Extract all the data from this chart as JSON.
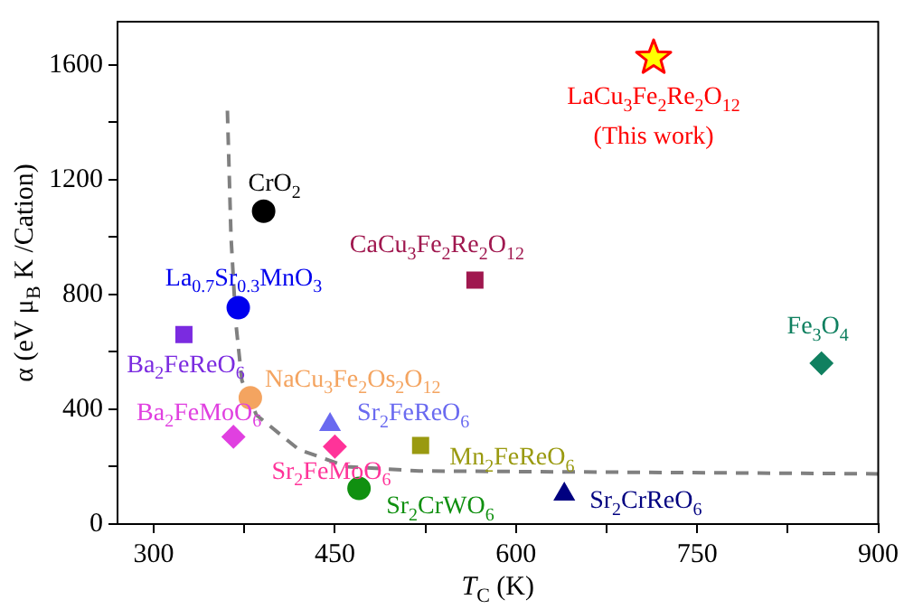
{
  "chart_data": {
    "type": "scatter",
    "xlabel": "T$_{C}$ (K)",
    "ylabel": "α (eV μ$_{B}$ K /Cation)",
    "xlim": [
      270,
      900
    ],
    "xticks": [
      300,
      {
        "value": 375,
        "label": null
      },
      450,
      {
        "value": 525,
        "label": null
      },
      600,
      {
        "value": 675,
        "label": null
      },
      750,
      {
        "value": 825,
        "label": null
      },
      900
    ],
    "ylim": [
      0,
      1750
    ],
    "yticks": [
      0,
      {
        "value": 200,
        "label": null
      },
      400,
      {
        "value": 600,
        "label": null
      },
      800,
      {
        "value": 1000,
        "label": null
      },
      1200,
      {
        "value": 1400,
        "label": null
      },
      1600
    ],
    "grid": false,
    "legend": false,
    "annotations": [
      {
        "text": "(This work)",
        "x": 714,
        "y": 1624
      }
    ],
    "series": [
      {
        "name": "LaCu$_{3}$Fe$_{2}$Re$_{2}$O$_{12}$",
        "color": "#ff0000",
        "marker": "star",
        "x": [
          714
        ],
        "values": [
          1624
        ]
      },
      {
        "name": "CrO$_{2}$",
        "color": "#000000",
        "marker": "circle",
        "x": [
          391
        ],
        "values": [
          1090
        ]
      },
      {
        "name": "CaCu$_{3}$Fe$_{2}$Re$_{2}$O$_{12}$",
        "color": "#a0184f",
        "marker": "square",
        "x": [
          566
        ],
        "values": [
          850
        ]
      },
      {
        "name": "La$_{0.7}$Sr$_{0.3}$MnO$_{3}$",
        "color": "#0000ee",
        "marker": "circle",
        "x": [
          370
        ],
        "values": [
          754
        ]
      },
      {
        "name": "Ba$_{2}$FeReO$_{6}$",
        "color": "#7b2be0",
        "marker": "square",
        "x": [
          325
        ],
        "values": [
          660
        ]
      },
      {
        "name": "NaCu$_{3}$Fe$_{2}$Os$_{2}$O$_{12}$",
        "color": "#f4a460",
        "marker": "circle",
        "x": [
          380
        ],
        "values": [
          440
        ]
      },
      {
        "name": "Ba$_{2}$FeMoO$_{6}$",
        "color": "#e040e0",
        "marker": "diamond",
        "x": [
          366
        ],
        "values": [
          304
        ]
      },
      {
        "name": "Sr$_{2}$FeReO$_{6}$",
        "color": "#6a6af0",
        "marker": "triangle",
        "x": [
          446
        ],
        "values": [
          346
        ]
      },
      {
        "name": "Sr$_{2}$FeMoO$_{6}$",
        "color": "#ff3399",
        "marker": "diamond",
        "x": [
          450
        ],
        "values": [
          270
        ]
      },
      {
        "name": "Sr$_{2}$CrWO$_{6}$",
        "color": "#109010",
        "marker": "circle",
        "x": [
          470
        ],
        "values": [
          124
        ]
      },
      {
        "name": "Mn$_{2}$FeReO$_{6}$",
        "color": "#9a9a10",
        "marker": "square",
        "x": [
          521
        ],
        "values": [
          274
        ]
      },
      {
        "name": "Sr$_{2}$CrReO$_{6}$",
        "color": "#000080",
        "marker": "triangle",
        "x": [
          640
        ],
        "values": [
          104
        ]
      },
      {
        "name": "Fe$_{3}$O$_{4}$",
        "color": "#108060",
        "marker": "diamond",
        "x": [
          853
        ],
        "values": [
          560
        ]
      },
      {
        "type": "line",
        "color": "#808080",
        "line_style": "dashed",
        "marker": "none",
        "x": [
          361,
          364,
          368,
          373,
          385,
          420,
          460,
          520,
          900
        ],
        "values": [
          1440,
          1000,
          700,
          500,
          380,
          260,
          200,
          185,
          175
        ]
      }
    ]
  }
}
